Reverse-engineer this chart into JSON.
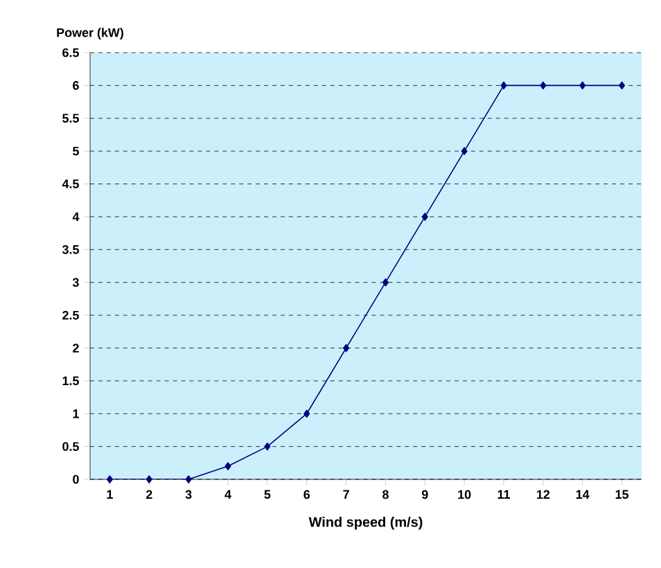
{
  "chart_data": {
    "type": "line",
    "xlabel": "Wind speed (m/s)",
    "ylabel": "Power (kW)",
    "categories": [
      "1",
      "2",
      "3",
      "4",
      "5",
      "6",
      "7",
      "8",
      "9",
      "10",
      "11",
      "12",
      "14",
      "15"
    ],
    "series": [
      {
        "color": "#000080",
        "values": [
          0,
          0,
          0,
          0.2,
          0.5,
          1,
          2,
          3,
          4,
          5,
          6,
          6,
          6,
          6
        ]
      }
    ],
    "ylim": [
      0,
      6.5
    ],
    "yticks": [
      0,
      0.5,
      1,
      1.5,
      2,
      2.5,
      3,
      3.5,
      4,
      4.5,
      5,
      5.5,
      6,
      6.5
    ],
    "grid": "y",
    "marker": "diamond",
    "line_style": "solid"
  }
}
